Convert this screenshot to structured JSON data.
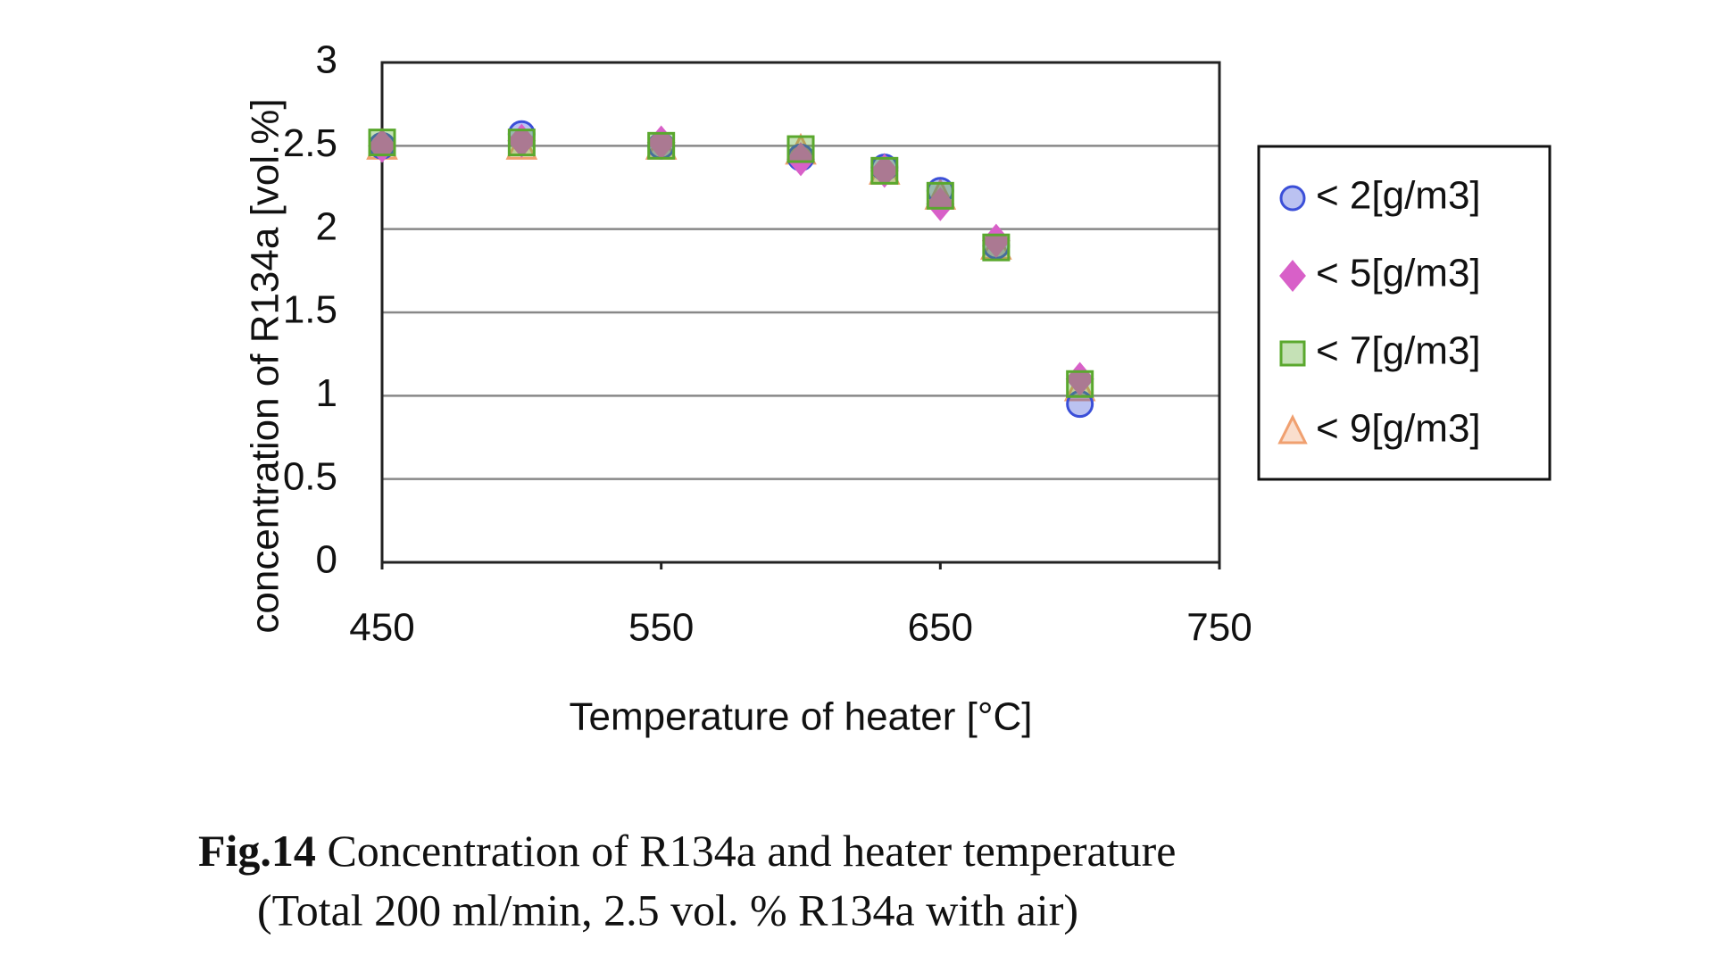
{
  "chart_data": {
    "type": "scatter",
    "xlabel": "Temperature of heater [°C]",
    "ylabel": "concentration of R134a [vol.%]",
    "xlim": [
      450,
      750
    ],
    "xticks": [
      450,
      550,
      650,
      750
    ],
    "ylim": [
      0,
      3
    ],
    "yticks": [
      0,
      0.5,
      1,
      1.5,
      2,
      2.5,
      3
    ],
    "grid": true,
    "legend": "right",
    "series": [
      {
        "name": "< 2[g/m3]",
        "marker": "circle",
        "color": "#3b4fd8",
        "x": [
          450,
          500,
          550,
          600,
          630,
          650,
          670,
          700
        ],
        "values": [
          2.5,
          2.57,
          2.5,
          2.43,
          2.37,
          2.23,
          1.9,
          0.95
        ]
      },
      {
        "name": "< 5[g/m3]",
        "marker": "diamond",
        "color": "#d860c8",
        "x": [
          450,
          500,
          550,
          600,
          630,
          650,
          670,
          700
        ],
        "values": [
          2.5,
          2.53,
          2.52,
          2.42,
          2.35,
          2.15,
          1.93,
          1.1
        ]
      },
      {
        "name": "< 7[g/m3]",
        "marker": "square",
        "color": "#5aa82e",
        "x": [
          450,
          500,
          550,
          600,
          630,
          650,
          670,
          700
        ],
        "values": [
          2.52,
          2.52,
          2.5,
          2.48,
          2.35,
          2.2,
          1.89,
          1.07
        ]
      },
      {
        "name": "< 9[g/m3]",
        "marker": "triangle",
        "color": "#f0a070",
        "x": [
          450,
          500,
          550,
          600,
          630,
          650,
          670,
          700
        ],
        "values": [
          2.5,
          2.5,
          2.5,
          2.47,
          2.35,
          2.2,
          1.9,
          1.05
        ]
      }
    ]
  },
  "caption": {
    "label": "Fig.14",
    "text": " Concentration of R134a and heater temperature",
    "line2": "(Total 200 ml/min, 2.5 vol. % R134a with air)"
  }
}
